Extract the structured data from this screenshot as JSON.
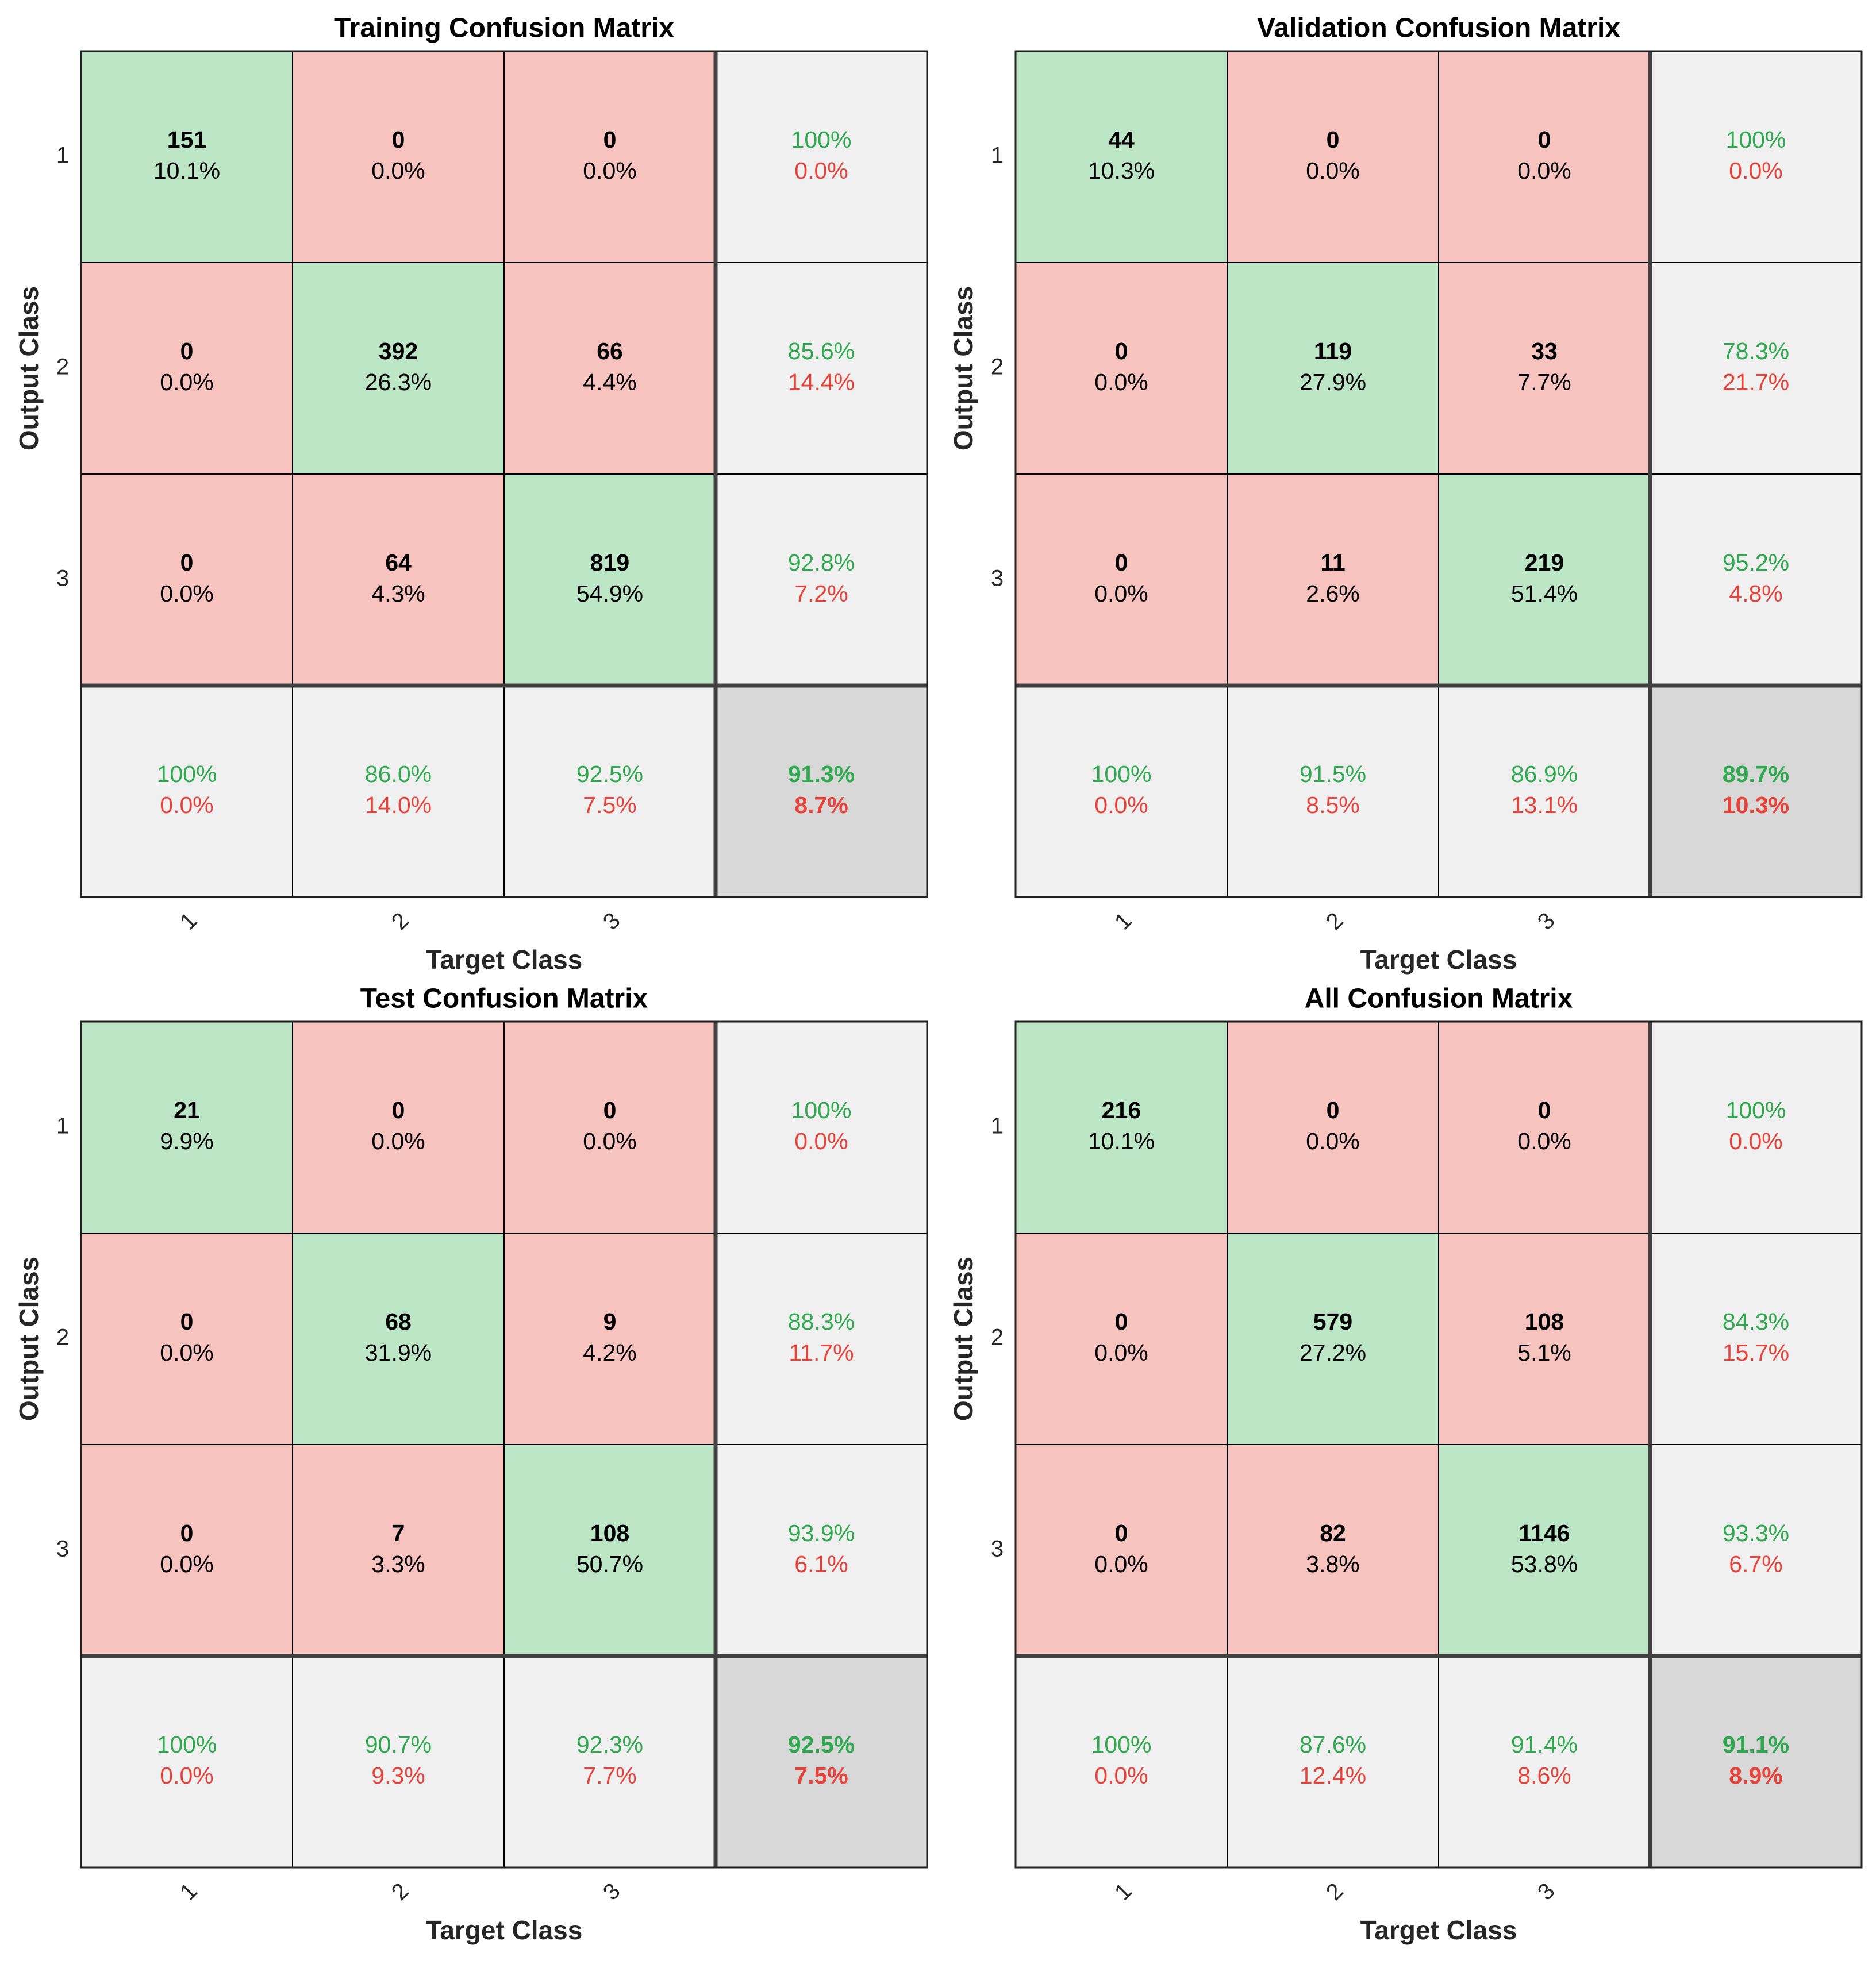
{
  "chart_data": [
    {
      "type": "confusion_matrix",
      "title": "Training Confusion Matrix",
      "xlabel": "Target Class",
      "ylabel": "Output Class",
      "categories": [
        "1",
        "2",
        "3"
      ],
      "values": [
        [
          151,
          0,
          0
        ],
        [
          0,
          392,
          66
        ],
        [
          0,
          64,
          819
        ]
      ],
      "percents": [
        [
          10.1,
          0,
          0
        ],
        [
          0,
          26.3,
          4.4
        ],
        [
          0,
          4.3,
          54.9
        ]
      ],
      "percent_labels": [
        [
          "10.1%",
          "0.0%",
          "0.0%"
        ],
        [
          "0.0%",
          "26.3%",
          "4.4%"
        ],
        [
          "0.0%",
          "4.3%",
          "54.9%"
        ]
      ],
      "row_correct": [
        100,
        85.6,
        92.8
      ],
      "row_correct_labels": [
        "100%",
        "85.6%",
        "92.8%"
      ],
      "row_error": [
        0,
        14.4,
        7.2
      ],
      "row_error_labels": [
        "0.0%",
        "14.4%",
        "7.2%"
      ],
      "col_correct": [
        100,
        86.0,
        92.5
      ],
      "col_correct_labels": [
        "100%",
        "86.0%",
        "92.5%"
      ],
      "col_error": [
        0,
        14.0,
        7.5
      ],
      "col_error_labels": [
        "0.0%",
        "14.0%",
        "7.5%"
      ],
      "overall_correct": 91.3,
      "overall_correct_label": "91.3%",
      "overall_error": 8.7,
      "overall_error_label": "8.7%",
      "colors": {
        "correct": "#bde6c6",
        "incorrect": "#f7c3bf",
        "summary": "#f0f0f0",
        "overall": "#d8d8d8",
        "correct_text": "#2fa84f",
        "error_text": "#e5433a"
      }
    },
    {
      "type": "confusion_matrix",
      "title": "Validation Confusion Matrix",
      "xlabel": "Target Class",
      "ylabel": "Output Class",
      "categories": [
        "1",
        "2",
        "3"
      ],
      "values": [
        [
          44,
          0,
          0
        ],
        [
          0,
          119,
          33
        ],
        [
          0,
          11,
          219
        ]
      ],
      "percents": [
        [
          10.3,
          0,
          0
        ],
        [
          0,
          27.9,
          7.7
        ],
        [
          0,
          2.6,
          51.4
        ]
      ],
      "percent_labels": [
        [
          "10.3%",
          "0.0%",
          "0.0%"
        ],
        [
          "0.0%",
          "27.9%",
          "7.7%"
        ],
        [
          "0.0%",
          "2.6%",
          "51.4%"
        ]
      ],
      "row_correct": [
        100,
        78.3,
        95.2
      ],
      "row_correct_labels": [
        "100%",
        "78.3%",
        "95.2%"
      ],
      "row_error": [
        0,
        21.7,
        4.8
      ],
      "row_error_labels": [
        "0.0%",
        "21.7%",
        "4.8%"
      ],
      "col_correct": [
        100,
        91.5,
        86.9
      ],
      "col_correct_labels": [
        "100%",
        "91.5%",
        "86.9%"
      ],
      "col_error": [
        0,
        8.5,
        13.1
      ],
      "col_error_labels": [
        "0.0%",
        "8.5%",
        "13.1%"
      ],
      "overall_correct": 89.7,
      "overall_correct_label": "89.7%",
      "overall_error": 10.3,
      "overall_error_label": "10.3%",
      "colors": {
        "correct": "#bde6c6",
        "incorrect": "#f7c3bf",
        "summary": "#f0f0f0",
        "overall": "#d8d8d8",
        "correct_text": "#2fa84f",
        "error_text": "#e5433a"
      }
    },
    {
      "type": "confusion_matrix",
      "title": "Test Confusion Matrix",
      "xlabel": "Target Class",
      "ylabel": "Output Class",
      "categories": [
        "1",
        "2",
        "3"
      ],
      "values": [
        [
          21,
          0,
          0
        ],
        [
          0,
          68,
          9
        ],
        [
          0,
          7,
          108
        ]
      ],
      "percents": [
        [
          9.9,
          0,
          0
        ],
        [
          0,
          31.9,
          4.2
        ],
        [
          0,
          3.3,
          50.7
        ]
      ],
      "percent_labels": [
        [
          "9.9%",
          "0.0%",
          "0.0%"
        ],
        [
          "0.0%",
          "31.9%",
          "4.2%"
        ],
        [
          "0.0%",
          "3.3%",
          "50.7%"
        ]
      ],
      "row_correct": [
        100,
        88.3,
        93.9
      ],
      "row_correct_labels": [
        "100%",
        "88.3%",
        "93.9%"
      ],
      "row_error": [
        0,
        11.7,
        6.1
      ],
      "row_error_labels": [
        "0.0%",
        "11.7%",
        "6.1%"
      ],
      "col_correct": [
        100,
        90.7,
        92.3
      ],
      "col_correct_labels": [
        "100%",
        "90.7%",
        "92.3%"
      ],
      "col_error": [
        0,
        9.3,
        7.7
      ],
      "col_error_labels": [
        "0.0%",
        "9.3%",
        "7.7%"
      ],
      "overall_correct": 92.5,
      "overall_correct_label": "92.5%",
      "overall_error": 7.5,
      "overall_error_label": "7.5%",
      "colors": {
        "correct": "#bde6c6",
        "incorrect": "#f7c3bf",
        "summary": "#f0f0f0",
        "overall": "#d8d8d8",
        "correct_text": "#2fa84f",
        "error_text": "#e5433a"
      }
    },
    {
      "type": "confusion_matrix",
      "title": "All Confusion Matrix",
      "xlabel": "Target Class",
      "ylabel": "Output Class",
      "categories": [
        "1",
        "2",
        "3"
      ],
      "values": [
        [
          216,
          0,
          0
        ],
        [
          0,
          579,
          108
        ],
        [
          0,
          82,
          1146
        ]
      ],
      "percents": [
        [
          10.1,
          0,
          0
        ],
        [
          0,
          27.2,
          5.1
        ],
        [
          0,
          3.8,
          53.8
        ]
      ],
      "percent_labels": [
        [
          "10.1%",
          "0.0%",
          "0.0%"
        ],
        [
          "0.0%",
          "27.2%",
          "5.1%"
        ],
        [
          "0.0%",
          "3.8%",
          "53.8%"
        ]
      ],
      "row_correct": [
        100,
        84.3,
        93.3
      ],
      "row_correct_labels": [
        "100%",
        "84.3%",
        "93.3%"
      ],
      "row_error": [
        0,
        15.7,
        6.7
      ],
      "row_error_labels": [
        "0.0%",
        "15.7%",
        "6.7%"
      ],
      "col_correct": [
        100,
        87.6,
        91.4
      ],
      "col_correct_labels": [
        "100%",
        "87.6%",
        "91.4%"
      ],
      "col_error": [
        0,
        12.4,
        8.6
      ],
      "col_error_labels": [
        "0.0%",
        "12.4%",
        "8.6%"
      ],
      "overall_correct": 91.1,
      "overall_correct_label": "91.1%",
      "overall_error": 8.9,
      "overall_error_label": "8.9%",
      "colors": {
        "correct": "#bde6c6",
        "incorrect": "#f7c3bf",
        "summary": "#f0f0f0",
        "overall": "#d8d8d8",
        "correct_text": "#2fa84f",
        "error_text": "#e5433a"
      }
    }
  ]
}
